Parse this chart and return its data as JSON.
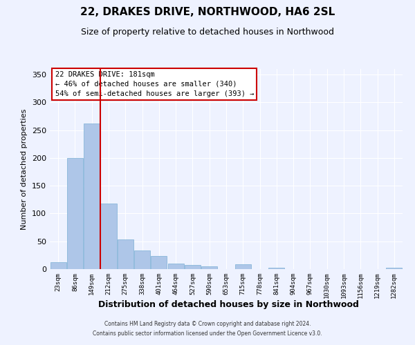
{
  "title": "22, DRAKES DRIVE, NORTHWOOD, HA6 2SL",
  "subtitle": "Size of property relative to detached houses in Northwood",
  "xlabel": "Distribution of detached houses by size in Northwood",
  "ylabel": "Number of detached properties",
  "bin_labels": [
    "23sqm",
    "86sqm",
    "149sqm",
    "212sqm",
    "275sqm",
    "338sqm",
    "401sqm",
    "464sqm",
    "527sqm",
    "590sqm",
    "653sqm",
    "715sqm",
    "778sqm",
    "841sqm",
    "904sqm",
    "967sqm",
    "1030sqm",
    "1093sqm",
    "1156sqm",
    "1219sqm",
    "1282sqm"
  ],
  "bar_heights": [
    13,
    200,
    262,
    118,
    54,
    33,
    24,
    10,
    8,
    5,
    0,
    9,
    0,
    3,
    0,
    0,
    0,
    0,
    0,
    0,
    2
  ],
  "bar_color": "#aec6e8",
  "bar_edge_color": "#7bafd4",
  "vline_color": "#cc0000",
  "annotation_title": "22 DRAKES DRIVE: 181sqm",
  "annotation_line1": "← 46% of detached houses are smaller (340)",
  "annotation_line2": "54% of semi-detached houses are larger (393) →",
  "annotation_box_color": "#ffffff",
  "annotation_box_edge": "#cc0000",
  "ylim": [
    0,
    360
  ],
  "yticks": [
    0,
    50,
    100,
    150,
    200,
    250,
    300,
    350
  ],
  "background_color": "#eef2ff",
  "grid_color": "#ffffff",
  "footer_line1": "Contains HM Land Registry data © Crown copyright and database right 2024.",
  "footer_line2": "Contains public sector information licensed under the Open Government Licence v3.0."
}
